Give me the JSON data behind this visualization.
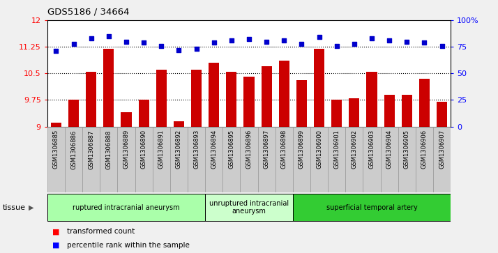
{
  "title": "GDS5186 / 34664",
  "samples": [
    "GSM1306885",
    "GSM1306886",
    "GSM1306887",
    "GSM1306888",
    "GSM1306889",
    "GSM1306890",
    "GSM1306891",
    "GSM1306892",
    "GSM1306893",
    "GSM1306894",
    "GSM1306895",
    "GSM1306896",
    "GSM1306897",
    "GSM1306898",
    "GSM1306899",
    "GSM1306900",
    "GSM1306901",
    "GSM1306902",
    "GSM1306903",
    "GSM1306904",
    "GSM1306905",
    "GSM1306906",
    "GSM1306907"
  ],
  "bar_values": [
    9.1,
    9.75,
    10.55,
    11.2,
    9.4,
    9.75,
    10.6,
    9.15,
    10.6,
    10.8,
    10.55,
    10.4,
    10.7,
    10.85,
    10.3,
    11.2,
    9.75,
    9.8,
    10.55,
    9.9,
    9.9,
    10.35,
    9.7
  ],
  "scatter_values": [
    71,
    78,
    83,
    85,
    80,
    79,
    76,
    72,
    73,
    79,
    81,
    82,
    80,
    81,
    78,
    84,
    76,
    78,
    83,
    81,
    80,
    79,
    76
  ],
  "bar_color": "#cc0000",
  "scatter_color": "#0000cc",
  "ymin": 9,
  "ymax": 12,
  "yticks_left": [
    9,
    9.75,
    10.5,
    11.25,
    12
  ],
  "ytick_labels_left": [
    "9",
    "9.75",
    "10.5",
    "11.25",
    "12"
  ],
  "yticks_right": [
    0,
    25,
    50,
    75,
    100
  ],
  "ytick_labels_right": [
    "0",
    "25",
    "50",
    "75",
    "100%"
  ],
  "hlines": [
    9.75,
    10.5,
    11.25
  ],
  "groups": [
    {
      "label": "ruptured intracranial aneurysm",
      "start": 0,
      "end": 8,
      "color": "#aaffaa"
    },
    {
      "label": "unruptured intracranial\naneurysm",
      "start": 9,
      "end": 13,
      "color": "#ccffcc"
    },
    {
      "label": "superficial temporal artery",
      "start": 14,
      "end": 22,
      "color": "#33cc33"
    }
  ],
  "legend_bar_label": "transformed count",
  "legend_scatter_label": "percentile rank within the sample",
  "tissue_label": "tissue",
  "fig_bg": "#f0f0f0",
  "plot_bg": "#ffffff",
  "xtick_bg": "#cccccc"
}
